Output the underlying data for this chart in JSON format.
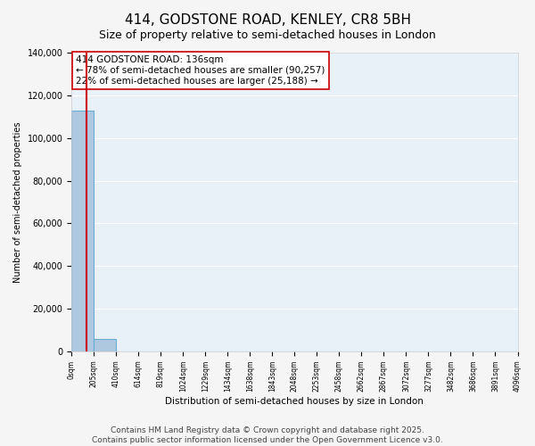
{
  "title": "414, GODSTONE ROAD, KENLEY, CR8 5BH",
  "subtitle": "Size of property relative to semi-detached houses in London",
  "xlabel": "Distribution of semi-detached houses by size in London",
  "ylabel": "Number of semi-detached properties",
  "footer": "Contains HM Land Registry data © Crown copyright and database right 2025.\nContains public sector information licensed under the Open Government Licence v3.0.",
  "bin_labels": [
    "0sqm",
    "205sqm",
    "410sqm",
    "614sqm",
    "819sqm",
    "1024sqm",
    "1229sqm",
    "1434sqm",
    "1638sqm",
    "1843sqm",
    "2048sqm",
    "2253sqm",
    "2458sqm",
    "2662sqm",
    "2867sqm",
    "3072sqm",
    "3277sqm",
    "3482sqm",
    "3686sqm",
    "3891sqm",
    "4096sqm"
  ],
  "bar_values": [
    113000,
    6000,
    0,
    0,
    0,
    0,
    0,
    0,
    0,
    0,
    0,
    0,
    0,
    0,
    0,
    0,
    0,
    0,
    0,
    0
  ],
  "bar_color": "#aec8e0",
  "bar_edgecolor": "#6aaed6",
  "property_line_x": 0.664,
  "property_line_color": "#cc0000",
  "annotation_text": "414 GODSTONE ROAD: 136sqm\n← 78% of semi-detached houses are smaller (90,257)\n22% of semi-detached houses are larger (25,188) →",
  "annotation_box_color": "#ffffff",
  "annotation_box_edgecolor": "#cc0000",
  "ylim": [
    0,
    140000
  ],
  "bg_color": "#e8f0f8",
  "grid_color": "#ffffff",
  "title_fontsize": 11,
  "subtitle_fontsize": 9,
  "annotation_fontsize": 7.5,
  "footer_fontsize": 6.5
}
